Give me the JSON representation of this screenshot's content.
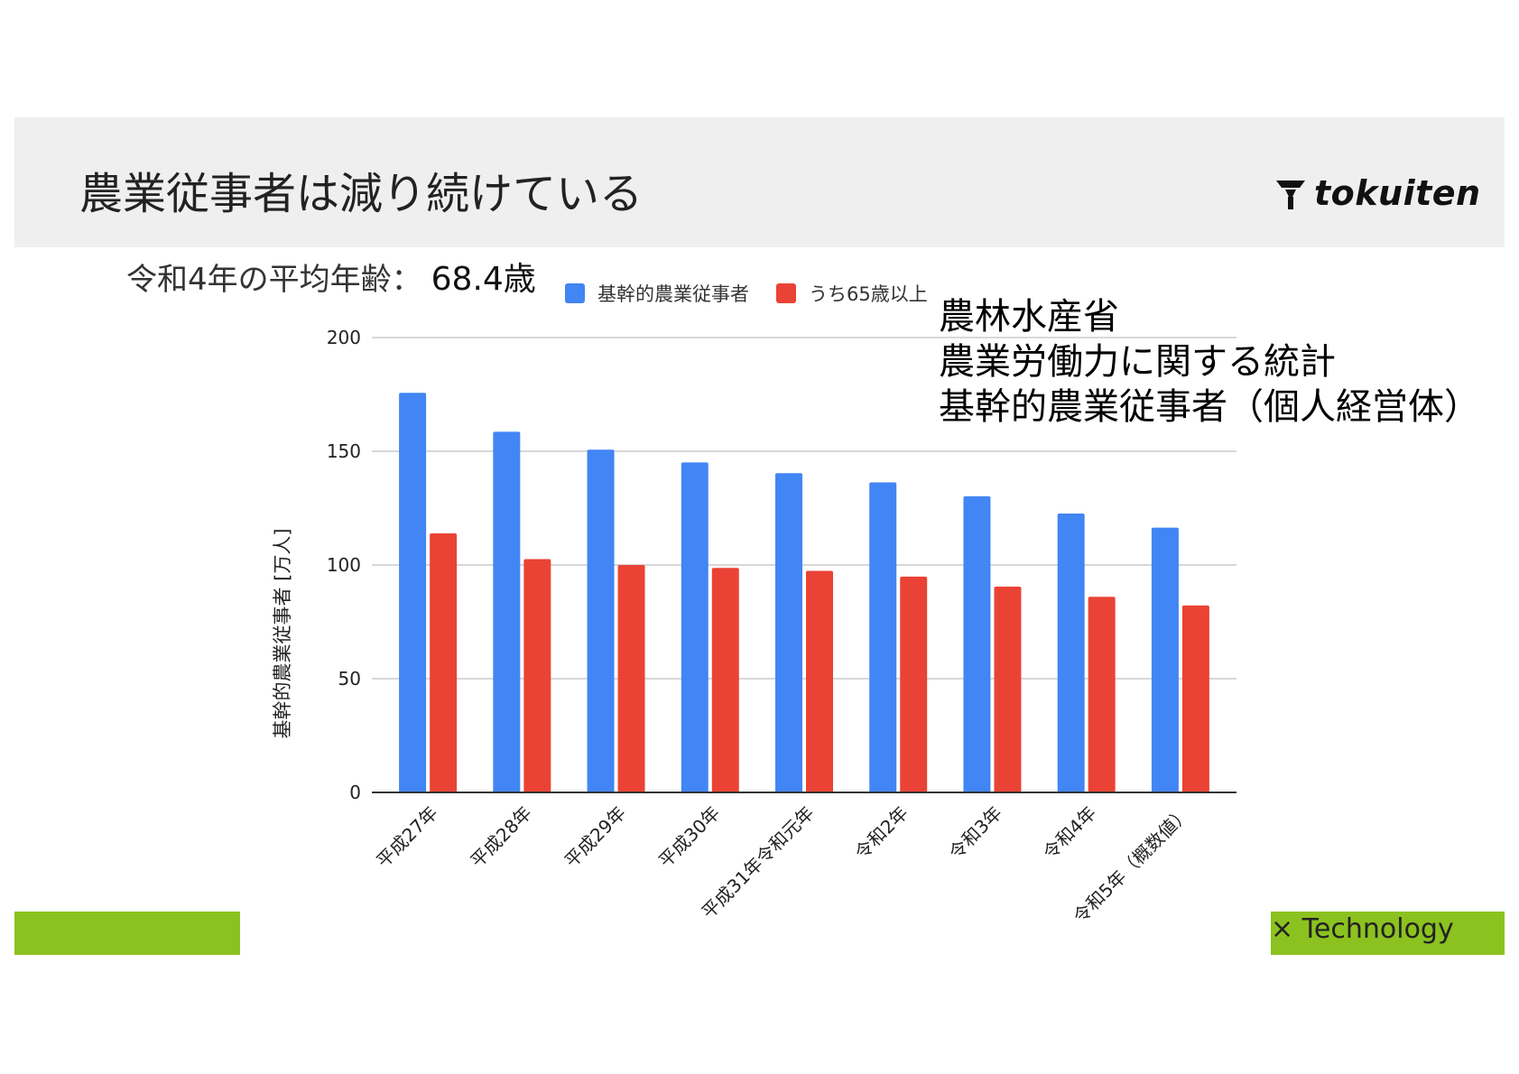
{
  "slide": {
    "title": "農業従事者は減り続けている",
    "logo_text": "tokuiten",
    "avg_age_label": "令和4年の平均年齢：",
    "avg_age_value": "68.4歳",
    "source_lines": [
      "農林水産省",
      "農業労働力に関する統計",
      "基幹的農業従事者（個人経営体）"
    ],
    "footer_text": "× Technology"
  },
  "colors": {
    "header_band": "#efefef",
    "series_main": "#4285f4",
    "series_65": "#ea4335",
    "accent_green": "#8cc21f",
    "gridline": "#cccccc"
  },
  "icons": {
    "logo": "tokuiten-logo-icon"
  },
  "chart_data": {
    "type": "bar",
    "title": "",
    "xlabel": "",
    "ylabel": "基幹的農業従事者 [万人]",
    "ylim": [
      0,
      200
    ],
    "yticks": [
      0,
      50,
      100,
      150,
      200
    ],
    "grid": true,
    "legend_position": "top",
    "categories": [
      "平成27年",
      "平成28年",
      "平成29年",
      "平成30年",
      "平成31年令和元年",
      "令和2年",
      "令和3年",
      "令和4年",
      "令和5年（概数値）"
    ],
    "series": [
      {
        "name": "基幹的農業従事者",
        "color": "#4285f4",
        "values": [
          175.7,
          158.6,
          150.7,
          145.1,
          140.4,
          136.3,
          130.2,
          122.6,
          116.4
        ]
      },
      {
        "name": "うち65歳以上",
        "color": "#ea4335",
        "values": [
          113.9,
          102.6,
          100.0,
          98.7,
          97.4,
          94.9,
          90.5,
          86.0,
          82.2
        ]
      }
    ]
  }
}
